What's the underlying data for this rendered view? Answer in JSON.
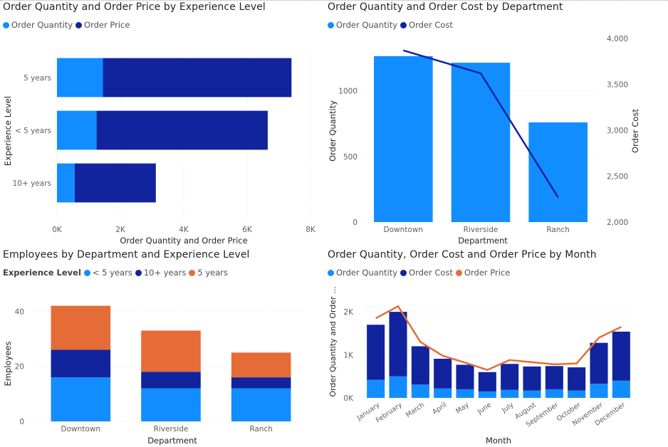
{
  "colors": {
    "light_blue": "#118DFF",
    "dark_blue": "#12239E",
    "orange": "#E66C37",
    "axis_text": "#605E5C",
    "grid": "#E1DFDD"
  },
  "chart_data": [
    {
      "type": "bar",
      "orientation": "horizontal",
      "stacked": true,
      "title": "Order Quantity and Order Price by Experience Level",
      "xlabel": "Order Quantity and Order Price",
      "ylabel": "Experience Level",
      "categories": [
        "5 years",
        "< 5 years",
        "10+ years"
      ],
      "series": [
        {
          "name": "Order Quantity",
          "color": "#118DFF",
          "values": [
            1450,
            1250,
            560
          ]
        },
        {
          "name": "Order Price",
          "color": "#12239E",
          "values": [
            5950,
            5400,
            2560
          ]
        }
      ],
      "xlim": [
        0,
        8000
      ],
      "xticks": [
        "0K",
        "2K",
        "4K",
        "6K",
        "8K"
      ],
      "legend": "top-left",
      "grid": true
    },
    {
      "type": "bar",
      "combo": "bar-line",
      "title": "Order Quantity and Order Cost by Department",
      "xlabel": "Department",
      "ylabel": "Order Quantity",
      "y2label": "Order Cost",
      "categories": [
        "Downtown",
        "Riverside",
        "Ranch"
      ],
      "series": [
        {
          "name": "Order Quantity",
          "type": "bar",
          "axis": "left",
          "color": "#118DFF",
          "values": [
            1265,
            1215,
            760
          ]
        },
        {
          "name": "Order Cost",
          "type": "line",
          "axis": "right",
          "color": "#12239E",
          "values": [
            3870,
            3620,
            2270
          ]
        }
      ],
      "ylim": [
        0,
        1400
      ],
      "yticks": [
        "0",
        "500",
        "1000"
      ],
      "y2lim": [
        2000,
        4000
      ],
      "y2ticks": [
        "2,000",
        "2,500",
        "3,000",
        "3,500",
        "4,000"
      ],
      "legend": "top-left",
      "grid": true
    },
    {
      "type": "bar",
      "stacked": true,
      "title": "Employees by Department and Experience Level",
      "xlabel": "Department",
      "ylabel": "Employees",
      "legend_title": "Experience Level",
      "categories": [
        "Downtown",
        "Riverside",
        "Ranch"
      ],
      "series": [
        {
          "name": "< 5 years",
          "color": "#118DFF",
          "values": [
            16,
            12,
            12
          ]
        },
        {
          "name": "10+ years",
          "color": "#12239E",
          "values": [
            10,
            6,
            4
          ]
        },
        {
          "name": "5 years",
          "color": "#E66C37",
          "values": [
            16,
            15,
            9
          ]
        }
      ],
      "ylim": [
        0,
        45
      ],
      "yticks": [
        "0",
        "20",
        "40"
      ],
      "legend": "top-left",
      "grid": true
    },
    {
      "type": "bar",
      "combo": "stacked-bar-line",
      "title": "Order Quantity, Order Cost and Order Price by Month",
      "xlabel": "Month",
      "ylabel": "Order Quantity and Order ...",
      "categories": [
        "January",
        "February",
        "March",
        "April",
        "May",
        "June",
        "July",
        "August",
        "September",
        "October",
        "November",
        "December"
      ],
      "series": [
        {
          "name": "Order Quantity",
          "type": "bar",
          "color": "#118DFF",
          "values": [
            420,
            500,
            310,
            220,
            200,
            150,
            190,
            170,
            200,
            170,
            330,
            400
          ]
        },
        {
          "name": "Order Cost",
          "type": "bar",
          "color": "#12239E",
          "values": [
            1280,
            1500,
            890,
            690,
            570,
            450,
            600,
            560,
            540,
            540,
            950,
            1140
          ]
        },
        {
          "name": "Order Price",
          "type": "line",
          "color": "#E66C37",
          "values": [
            1850,
            2130,
            1300,
            980,
            820,
            650,
            880,
            830,
            780,
            800,
            1400,
            1650
          ]
        }
      ],
      "ylim": [
        0,
        2300
      ],
      "yticks": [
        "0K",
        "1K",
        "2K"
      ],
      "legend": "top-left",
      "grid": true
    }
  ]
}
